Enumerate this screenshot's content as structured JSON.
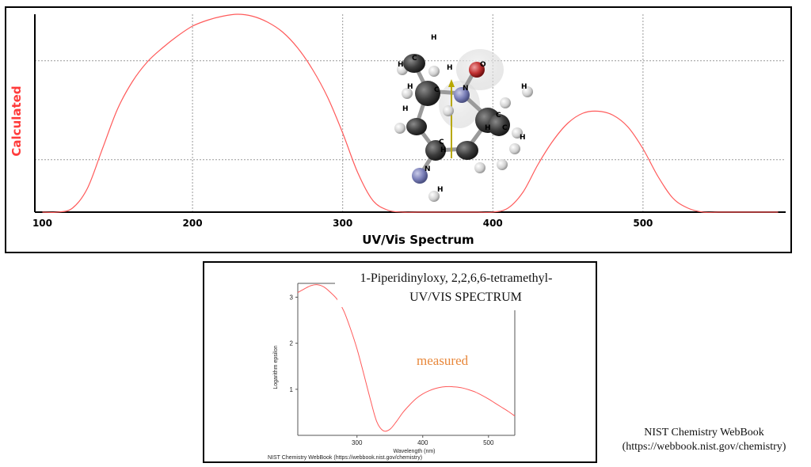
{
  "calculated": {
    "ylabel": "Calculated",
    "xlabel": "UV/Vis Spectrum",
    "colors": {
      "curve": "#ff5a5a",
      "ylabel": "#ff3b3b",
      "grid": "#9a9a9a"
    },
    "chart_data": {
      "type": "line",
      "title": "",
      "xlabel": "UV/Vis Spectrum",
      "ylabel": "Calculated",
      "xlim": [
        95,
        595
      ],
      "ylim": [
        0,
        1.0
      ],
      "x_ticks": [
        100,
        200,
        300,
        400,
        500
      ],
      "grid": true,
      "series": [
        {
          "x": [
            100,
            110,
            120,
            130,
            140,
            150,
            160,
            170,
            180,
            190,
            200,
            210,
            220,
            230,
            240,
            250,
            260,
            270,
            280,
            290,
            300,
            310,
            320,
            330,
            340,
            350,
            360,
            370,
            380,
            390,
            400,
            410,
            420,
            430,
            440,
            450,
            460,
            470,
            480,
            490,
            500,
            510,
            520,
            530,
            540,
            550,
            560,
            570,
            580,
            590
          ],
          "values": [
            0.0,
            0.0,
            0.02,
            0.12,
            0.32,
            0.52,
            0.66,
            0.76,
            0.83,
            0.89,
            0.94,
            0.97,
            0.99,
            1.0,
            0.99,
            0.96,
            0.91,
            0.83,
            0.72,
            0.58,
            0.4,
            0.2,
            0.06,
            0.01,
            0.0,
            0.0,
            0.0,
            0.0,
            0.0,
            0.0,
            0.0,
            0.02,
            0.1,
            0.24,
            0.36,
            0.45,
            0.5,
            0.51,
            0.49,
            0.43,
            0.32,
            0.18,
            0.07,
            0.02,
            0.0,
            0.0,
            0.0,
            0.0,
            0.0,
            0.0
          ]
        }
      ]
    },
    "molecule_labels": {
      "h": "H",
      "c": "C",
      "n": "N",
      "o": "O"
    }
  },
  "measured": {
    "title_line1": "1-Piperidinyloxy, 2,2,6,6-tetramethyl-",
    "title_line2": "UV/VIS SPECTRUM",
    "annotation": "measured",
    "footer": "NIST Chemistry WebBook (https://webbook.nist.gov/chemistry)",
    "colors": {
      "curve": "#ff5a5a",
      "annotation": "#e8873a"
    },
    "chart_data": {
      "type": "line",
      "title": "1-Piperidinyloxy, 2,2,6,6-tetramethyl- UV/VIS SPECTRUM",
      "xlabel": "Wavelength (nm)",
      "ylabel": "Logarithm epsilon",
      "xlim": [
        210,
        540
      ],
      "ylim": [
        0,
        3.3
      ],
      "x_ticks": [
        300,
        400,
        500
      ],
      "y_ticks": [
        1,
        2,
        3
      ],
      "grid": false,
      "series": [
        {
          "x": [
            210,
            220,
            230,
            240,
            250,
            260,
            270,
            280,
            290,
            300,
            310,
            320,
            330,
            340,
            350,
            360,
            370,
            380,
            390,
            400,
            410,
            420,
            430,
            440,
            450,
            460,
            470,
            480,
            490,
            500,
            510,
            520,
            530,
            540
          ],
          "values": [
            3.1,
            3.18,
            3.25,
            3.27,
            3.22,
            3.1,
            2.95,
            2.7,
            2.32,
            1.88,
            1.35,
            0.8,
            0.3,
            0.1,
            0.13,
            0.3,
            0.5,
            0.66,
            0.8,
            0.9,
            0.97,
            1.02,
            1.05,
            1.06,
            1.05,
            1.03,
            0.99,
            0.94,
            0.87,
            0.79,
            0.7,
            0.61,
            0.52,
            0.42
          ]
        }
      ]
    }
  },
  "credit": {
    "line1": "NIST Chemistry WebBook",
    "line2": "(https://webbook.nist.gov/chemistry)"
  }
}
